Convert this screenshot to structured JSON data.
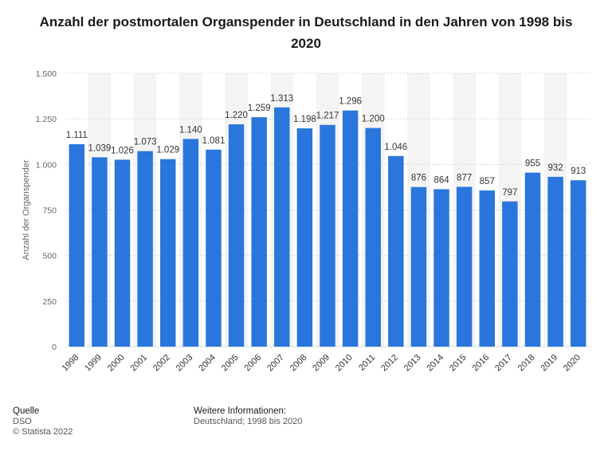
{
  "title": "Anzahl der postmortalen Organspender in Deutschland in den Jahren von 1998 bis 2020",
  "colors": {
    "bar": "#2a76dd",
    "band": "#f4f4f4",
    "grid": "#d8d8d8",
    "text": "#333333",
    "axis_text": "#666666"
  },
  "chart_data": {
    "type": "bar",
    "title": "Anzahl der postmortalen Organspender in Deutschland in den Jahren von 1998 bis 2020",
    "xlabel": "",
    "ylabel": "Anzahl der Organspender",
    "ylim": [
      0,
      1500
    ],
    "yticks": [
      0,
      250,
      500,
      750,
      1000,
      1250,
      1500
    ],
    "ytick_labels": [
      "0",
      "250",
      "500",
      "750",
      "1.000",
      "1.250",
      "1.500"
    ],
    "categories": [
      "1998",
      "1999",
      "2000",
      "2001",
      "2002",
      "2003",
      "2004",
      "2005",
      "2006",
      "2007",
      "2008",
      "2009",
      "2010",
      "2011",
      "2012",
      "2013",
      "2014",
      "2015",
      "2016",
      "2017",
      "2018",
      "2019",
      "2020"
    ],
    "values": [
      1111,
      1039,
      1026,
      1073,
      1029,
      1140,
      1081,
      1220,
      1259,
      1313,
      1198,
      1217,
      1296,
      1200,
      1046,
      876,
      864,
      877,
      857,
      797,
      955,
      932,
      913
    ],
    "value_labels": [
      "1.111",
      "1.039",
      "1.026",
      "1.073",
      "1.029",
      "1.140",
      "1.081",
      "1.220",
      "1.259",
      "1.313",
      "1.198",
      "1.217",
      "1.296",
      "1.200",
      "1.046",
      "876",
      "864",
      "877",
      "857",
      "797",
      "955",
      "932",
      "913"
    ],
    "grid": true,
    "alternating_bands": true
  },
  "footer": {
    "source_heading": "Quelle",
    "source": "DSO",
    "copyright": "© Statista 2022",
    "info_heading": "Weitere Informationen:",
    "info": "Deutschland; 1998 bis 2020"
  }
}
